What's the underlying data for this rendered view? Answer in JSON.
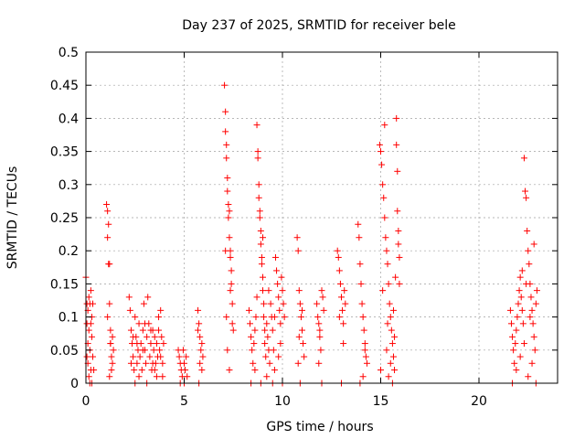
{
  "chart_data": {
    "type": "scatter",
    "title": "Day 237 of 2025, SRMTID for receiver bele",
    "xlabel": "GPS time / hours",
    "ylabel": "SRMTID / TECUs",
    "xlim": [
      0,
      24
    ],
    "ylim": [
      0,
      0.5
    ],
    "xticks": [
      0,
      5,
      10,
      15,
      20
    ],
    "yticks": [
      0,
      0.05,
      0.1,
      0.15,
      0.2,
      0.25,
      0.3,
      0.35,
      0.4,
      0.45,
      0.5
    ],
    "xtick_labels": [
      "0",
      "5",
      "10",
      "15",
      "20"
    ],
    "ytick_labels": [
      "0",
      "0.05",
      "0.1",
      "0.15",
      "0.2",
      "0.25",
      "0.3",
      "0.35",
      "0.4",
      "0.45",
      "0.5"
    ],
    "grid": true,
    "marker": "+",
    "color": "#ff0000",
    "series": [
      {
        "name": "SRMTID",
        "points": [
          [
            0.0,
            0.16
          ],
          [
            0.05,
            0.12
          ],
          [
            0.05,
            0.09
          ],
          [
            0.1,
            0.11
          ],
          [
            0.1,
            0.06
          ],
          [
            0.1,
            0.03
          ],
          [
            0.15,
            0.01
          ],
          [
            0.15,
            0.08
          ],
          [
            0.2,
            0.0
          ],
          [
            0.2,
            0.12
          ],
          [
            0.2,
            0.05
          ],
          [
            0.25,
            0.02
          ],
          [
            0.25,
            0.14
          ],
          [
            0.3,
            0.1
          ],
          [
            0.3,
            0.07
          ],
          [
            0.3,
            0.0
          ],
          [
            0.35,
            0.04
          ],
          [
            0.35,
            0.12
          ],
          [
            0.4,
            0.02
          ],
          [
            0.15,
            0.13
          ],
          [
            0.05,
            0.04
          ],
          [
            0.25,
            0.09
          ],
          [
            1.05,
            0.27
          ],
          [
            1.1,
            0.26
          ],
          [
            1.1,
            0.22
          ],
          [
            1.15,
            0.24
          ],
          [
            1.15,
            0.18
          ],
          [
            1.2,
            0.18
          ],
          [
            1.2,
            0.12
          ],
          [
            1.25,
            0.08
          ],
          [
            1.25,
            0.06
          ],
          [
            1.3,
            0.04
          ],
          [
            1.3,
            0.02
          ],
          [
            1.35,
            0.07
          ],
          [
            1.35,
            0.03
          ],
          [
            1.4,
            0.05
          ],
          [
            1.1,
            0.1
          ],
          [
            1.2,
            0.01
          ],
          [
            1.25,
            0.06
          ],
          [
            2.2,
            0.13
          ],
          [
            2.25,
            0.11
          ],
          [
            2.3,
            0.08
          ],
          [
            2.35,
            0.06
          ],
          [
            2.4,
            0.04
          ],
          [
            2.45,
            0.02
          ],
          [
            2.5,
            0.1
          ],
          [
            2.55,
            0.07
          ],
          [
            2.6,
            0.03
          ],
          [
            2.65,
            0.05
          ],
          [
            2.7,
            0.09
          ],
          [
            2.75,
            0.04
          ],
          [
            2.8,
            0.06
          ],
          [
            2.85,
            0.02
          ],
          [
            2.9,
            0.08
          ],
          [
            2.95,
            0.12
          ],
          [
            3.0,
            0.05
          ],
          [
            3.05,
            0.03
          ],
          [
            3.1,
            0.07
          ],
          [
            3.15,
            0.13
          ],
          [
            3.2,
            0.09
          ],
          [
            3.25,
            0.04
          ],
          [
            3.3,
            0.06
          ],
          [
            3.35,
            0.02
          ],
          [
            3.4,
            0.08
          ],
          [
            3.45,
            0.05
          ],
          [
            3.5,
            0.07
          ],
          [
            3.55,
            0.03
          ],
          [
            3.6,
            0.06
          ],
          [
            3.65,
            0.04
          ],
          [
            3.7,
            0.08
          ],
          [
            3.75,
            0.05
          ],
          [
            3.8,
            0.11
          ],
          [
            3.85,
            0.07
          ],
          [
            3.9,
            0.03
          ],
          [
            3.95,
            0.06
          ],
          [
            2.3,
            0.03
          ],
          [
            2.5,
            0.0
          ],
          [
            2.7,
            0.01
          ],
          [
            2.9,
            0.05
          ],
          [
            3.1,
            0.0
          ],
          [
            3.3,
            0.08
          ],
          [
            3.5,
            0.02
          ],
          [
            3.7,
            0.1
          ],
          [
            3.9,
            0.01
          ],
          [
            2.6,
            0.06
          ],
          [
            3.0,
            0.09
          ],
          [
            3.4,
            0.03
          ],
          [
            3.8,
            0.04
          ],
          [
            2.4,
            0.07
          ],
          [
            3.6,
            0.01
          ],
          [
            4.7,
            0.05
          ],
          [
            4.75,
            0.04
          ],
          [
            4.8,
            0.03
          ],
          [
            4.85,
            0.02
          ],
          [
            4.9,
            0.01
          ],
          [
            4.95,
            0.05
          ],
          [
            5.0,
            0.03
          ],
          [
            5.05,
            0.02
          ],
          [
            5.1,
            0.04
          ],
          [
            5.15,
            0.01
          ],
          [
            5.0,
            0.0
          ],
          [
            4.8,
            0.0
          ],
          [
            5.7,
            0.11
          ],
          [
            5.75,
            0.09
          ],
          [
            5.8,
            0.07
          ],
          [
            5.85,
            0.05
          ],
          [
            5.9,
            0.06
          ],
          [
            5.95,
            0.04
          ],
          [
            5.8,
            0.03
          ],
          [
            5.7,
            0.08
          ],
          [
            5.9,
            0.02
          ],
          [
            5.75,
            0.0
          ],
          [
            7.05,
            0.45
          ],
          [
            7.1,
            0.41
          ],
          [
            7.1,
            0.38
          ],
          [
            7.15,
            0.36
          ],
          [
            7.15,
            0.34
          ],
          [
            7.2,
            0.31
          ],
          [
            7.2,
            0.29
          ],
          [
            7.25,
            0.27
          ],
          [
            7.25,
            0.25
          ],
          [
            7.3,
            0.26
          ],
          [
            7.3,
            0.22
          ],
          [
            7.35,
            0.2
          ],
          [
            7.35,
            0.19
          ],
          [
            7.4,
            0.17
          ],
          [
            7.4,
            0.15
          ],
          [
            7.45,
            0.12
          ],
          [
            7.45,
            0.09
          ],
          [
            7.5,
            0.08
          ],
          [
            7.2,
            0.05
          ],
          [
            7.3,
            0.02
          ],
          [
            7.15,
            0.1
          ],
          [
            7.35,
            0.14
          ],
          [
            7.1,
            0.2
          ],
          [
            8.3,
            0.11
          ],
          [
            8.35,
            0.09
          ],
          [
            8.4,
            0.07
          ],
          [
            8.45,
            0.05
          ],
          [
            8.5,
            0.03
          ],
          [
            8.55,
            0.06
          ],
          [
            8.6,
            0.08
          ],
          [
            8.65,
            0.1
          ],
          [
            8.7,
            0.39
          ],
          [
            8.75,
            0.35
          ],
          [
            8.75,
            0.34
          ],
          [
            8.8,
            0.3
          ],
          [
            8.8,
            0.28
          ],
          [
            8.85,
            0.26
          ],
          [
            8.85,
            0.25
          ],
          [
            8.9,
            0.23
          ],
          [
            8.9,
            0.21
          ],
          [
            8.95,
            0.19
          ],
          [
            8.95,
            0.18
          ],
          [
            9.0,
            0.16
          ],
          [
            9.0,
            0.14
          ],
          [
            9.05,
            0.12
          ],
          [
            9.05,
            0.1
          ],
          [
            9.1,
            0.08
          ],
          [
            9.1,
            0.06
          ],
          [
            9.15,
            0.04
          ],
          [
            9.2,
            0.09
          ],
          [
            9.25,
            0.07
          ],
          [
            9.3,
            0.05
          ],
          [
            9.35,
            0.03
          ],
          [
            9.4,
            0.12
          ],
          [
            9.45,
            0.1
          ],
          [
            9.5,
            0.08
          ],
          [
            9.55,
            0.05
          ],
          [
            9.6,
            0.02
          ],
          [
            9.65,
            0.19
          ],
          [
            9.7,
            0.17
          ],
          [
            9.75,
            0.15
          ],
          [
            9.8,
            0.13
          ],
          [
            9.85,
            0.11
          ],
          [
            9.9,
            0.09
          ],
          [
            9.95,
            0.16
          ],
          [
            10.0,
            0.14
          ],
          [
            10.05,
            0.12
          ],
          [
            10.1,
            0.1
          ],
          [
            8.4,
            0.0
          ],
          [
            8.6,
            0.02
          ],
          [
            8.9,
            0.0
          ],
          [
            9.2,
            0.01
          ],
          [
            9.5,
            0.0
          ],
          [
            9.8,
            0.04
          ],
          [
            10.0,
            0.0
          ],
          [
            8.7,
            0.13
          ],
          [
            9.0,
            0.22
          ],
          [
            9.3,
            0.14
          ],
          [
            9.6,
            0.1
          ],
          [
            9.9,
            0.06
          ],
          [
            10.75,
            0.22
          ],
          [
            10.8,
            0.2
          ],
          [
            10.85,
            0.14
          ],
          [
            10.9,
            0.12
          ],
          [
            10.95,
            0.1
          ],
          [
            11.0,
            0.08
          ],
          [
            11.05,
            0.06
          ],
          [
            11.1,
            0.04
          ],
          [
            10.8,
            0.03
          ],
          [
            10.9,
            0.0
          ],
          [
            11.0,
            0.11
          ],
          [
            10.85,
            0.07
          ],
          [
            11.75,
            0.12
          ],
          [
            11.8,
            0.1
          ],
          [
            11.85,
            0.09
          ],
          [
            11.9,
            0.07
          ],
          [
            11.95,
            0.05
          ],
          [
            12.0,
            0.14
          ],
          [
            12.05,
            0.13
          ],
          [
            12.1,
            0.11
          ],
          [
            11.85,
            0.03
          ],
          [
            12.0,
            0.0
          ],
          [
            11.9,
            0.08
          ],
          [
            12.8,
            0.2
          ],
          [
            12.85,
            0.19
          ],
          [
            12.9,
            0.17
          ],
          [
            12.95,
            0.15
          ],
          [
            13.0,
            0.13
          ],
          [
            13.05,
            0.11
          ],
          [
            13.1,
            0.09
          ],
          [
            13.15,
            0.14
          ],
          [
            13.2,
            0.12
          ],
          [
            12.9,
            0.1
          ],
          [
            13.0,
            0.0
          ],
          [
            13.1,
            0.06
          ],
          [
            13.85,
            0.24
          ],
          [
            13.9,
            0.22
          ],
          [
            13.95,
            0.18
          ],
          [
            14.0,
            0.15
          ],
          [
            14.05,
            0.12
          ],
          [
            14.1,
            0.1
          ],
          [
            14.15,
            0.08
          ],
          [
            14.2,
            0.06
          ],
          [
            14.25,
            0.04
          ],
          [
            14.3,
            0.03
          ],
          [
            13.95,
            0.0
          ],
          [
            14.1,
            0.01
          ],
          [
            14.2,
            0.05
          ],
          [
            14.95,
            0.36
          ],
          [
            15.0,
            0.35
          ],
          [
            15.05,
            0.33
          ],
          [
            15.1,
            0.3
          ],
          [
            15.15,
            0.28
          ],
          [
            15.2,
            0.25
          ],
          [
            15.25,
            0.22
          ],
          [
            15.3,
            0.2
          ],
          [
            15.35,
            0.18
          ],
          [
            15.4,
            0.15
          ],
          [
            15.45,
            0.12
          ],
          [
            15.5,
            0.1
          ],
          [
            15.55,
            0.08
          ],
          [
            15.6,
            0.06
          ],
          [
            15.65,
            0.04
          ],
          [
            15.7,
            0.02
          ],
          [
            15.75,
            0.16
          ],
          [
            15.8,
            0.4
          ],
          [
            15.8,
            0.36
          ],
          [
            15.85,
            0.32
          ],
          [
            15.85,
            0.26
          ],
          [
            15.9,
            0.23
          ],
          [
            15.9,
            0.21
          ],
          [
            15.95,
            0.19
          ],
          [
            15.95,
            0.15
          ],
          [
            15.2,
            0.39
          ],
          [
            15.3,
            0.05
          ],
          [
            15.4,
            0.01
          ],
          [
            15.5,
            0.03
          ],
          [
            15.6,
            0.0
          ],
          [
            15.7,
            0.07
          ],
          [
            15.1,
            0.14
          ],
          [
            15.0,
            0.02
          ],
          [
            15.35,
            0.09
          ],
          [
            15.65,
            0.11
          ],
          [
            21.6,
            0.11
          ],
          [
            21.65,
            0.09
          ],
          [
            21.7,
            0.07
          ],
          [
            21.75,
            0.05
          ],
          [
            21.8,
            0.03
          ],
          [
            21.85,
            0.06
          ],
          [
            21.9,
            0.08
          ],
          [
            21.95,
            0.1
          ],
          [
            22.0,
            0.12
          ],
          [
            22.05,
            0.14
          ],
          [
            22.1,
            0.16
          ],
          [
            22.15,
            0.13
          ],
          [
            22.2,
            0.11
          ],
          [
            22.25,
            0.09
          ],
          [
            22.3,
            0.34
          ],
          [
            22.35,
            0.29
          ],
          [
            22.4,
            0.28
          ],
          [
            22.45,
            0.23
          ],
          [
            22.5,
            0.2
          ],
          [
            22.55,
            0.18
          ],
          [
            22.6,
            0.15
          ],
          [
            22.65,
            0.13
          ],
          [
            22.7,
            0.11
          ],
          [
            22.75,
            0.09
          ],
          [
            22.8,
            0.07
          ],
          [
            22.85,
            0.05
          ],
          [
            22.9,
            0.12
          ],
          [
            22.95,
            0.14
          ],
          [
            21.7,
            0.0
          ],
          [
            21.9,
            0.02
          ],
          [
            22.1,
            0.04
          ],
          [
            22.3,
            0.06
          ],
          [
            22.5,
            0.01
          ],
          [
            22.7,
            0.03
          ],
          [
            22.9,
            0.0
          ],
          [
            22.2,
            0.17
          ],
          [
            22.4,
            0.15
          ],
          [
            22.6,
            0.1
          ],
          [
            22.8,
            0.21
          ]
        ]
      }
    ]
  }
}
